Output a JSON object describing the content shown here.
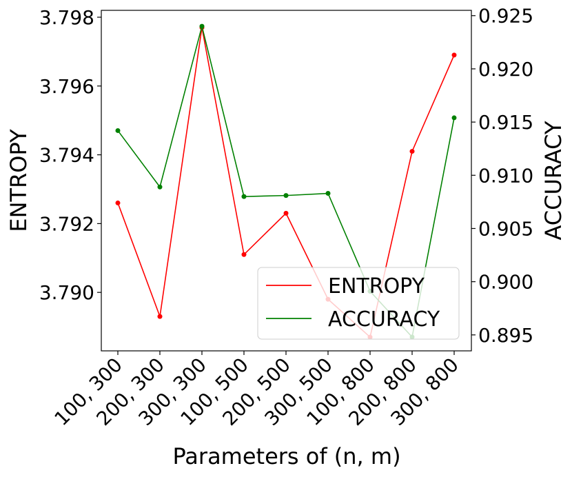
{
  "chart_data": {
    "type": "line",
    "title": "",
    "xlabel": "Parameters of (n, m)",
    "ylabel_left": "ENTROPY",
    "ylabel_right": "ACCURACY",
    "categories": [
      "100, 300",
      "200, 300",
      "300, 300",
      "100, 500",
      "200, 500",
      "300, 500",
      "100, 800",
      "200, 800",
      "300, 800"
    ],
    "ylim_left": [
      3.7883,
      3.7982
    ],
    "ylim_right": [
      0.8935,
      0.9255
    ],
    "yticks_left": [
      "3.790",
      "3.792",
      "3.794",
      "3.796",
      "3.798"
    ],
    "yticks_right": [
      "0.895",
      "0.900",
      "0.905",
      "0.910",
      "0.915",
      "0.920",
      "0.925"
    ],
    "legend_position": "lower right",
    "grid": false,
    "series": [
      {
        "name": "ENTROPY",
        "axis": "left",
        "color": "#ff0000",
        "values": [
          3.7926,
          3.7893,
          3.7977,
          3.7911,
          3.7923,
          3.7898,
          3.7887,
          3.7941,
          3.7969
        ]
      },
      {
        "name": "ACCURACY",
        "axis": "right",
        "color": "#008000",
        "values": [
          0.9142,
          0.9089,
          0.924,
          0.908,
          0.9081,
          0.9083,
          0.8991,
          0.8948,
          0.9154
        ]
      }
    ]
  }
}
